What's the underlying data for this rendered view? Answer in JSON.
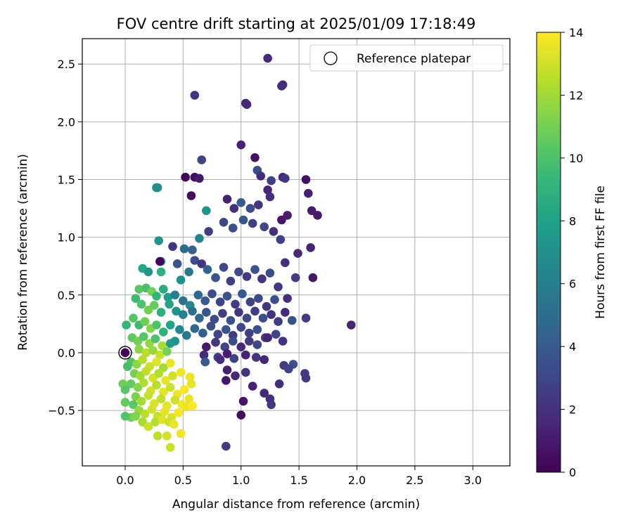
{
  "chart_data": {
    "type": "scatter",
    "title": "FOV centre drift starting at 2025/01/09 17:18:49",
    "xlabel": "Angular distance from reference (arcmin)",
    "ylabel": "Rotation from reference (arcmin)",
    "xlim": [
      -0.37,
      3.32
    ],
    "ylim": [
      -0.98,
      2.72
    ],
    "xticks": [
      "0.0",
      "0.5",
      "1.0",
      "1.5",
      "2.0",
      "2.5",
      "3.0"
    ],
    "xtick_values": [
      0,
      0.5,
      1,
      1.5,
      2,
      2.5,
      3
    ],
    "yticks": [
      "−0.5",
      "0.0",
      "0.5",
      "1.0",
      "1.5",
      "2.0",
      "2.5"
    ],
    "ytick_values": [
      -0.5,
      0,
      0.5,
      1,
      1.5,
      2,
      2.5
    ],
    "grid": true,
    "legend": {
      "position": "top-right",
      "entries": [
        {
          "label": "Reference platepar",
          "marker": "open-circle",
          "color": "#000000"
        }
      ]
    },
    "reference_point": {
      "x": 0.0,
      "y": 0.0
    },
    "colorbar": {
      "label": "Hours from first FF file",
      "range": [
        0,
        14
      ],
      "ticks": [
        "0",
        "2",
        "4",
        "6",
        "8",
        "10",
        "12",
        "14"
      ],
      "tick_values": [
        0,
        2,
        4,
        6,
        8,
        10,
        12,
        14
      ],
      "colormap": "viridis",
      "colors": [
        "#440154",
        "#482878",
        "#3e4989",
        "#31688e",
        "#26828e",
        "#1f9e89",
        "#35b779",
        "#6ece58",
        "#b5de2b",
        "#fde725"
      ]
    },
    "points": [
      [
        1.23,
        2.55,
        1.5
      ],
      [
        0.6,
        2.23,
        2.1
      ],
      [
        1.36,
        2.32,
        1.6
      ],
      [
        1.35,
        2.31,
        1.8
      ],
      [
        1.04,
        2.16,
        1.2
      ],
      [
        1.05,
        2.15,
        1.7
      ],
      [
        1.0,
        1.8,
        1.3
      ],
      [
        1.12,
        1.69,
        0.6
      ],
      [
        1.14,
        1.58,
        3.3
      ],
      [
        0.66,
        1.67,
        2.9
      ],
      [
        0.52,
        1.52,
        0.2
      ],
      [
        0.6,
        1.52,
        0.5
      ],
      [
        0.64,
        1.51,
        1.0
      ],
      [
        1.36,
        1.52,
        1.4
      ],
      [
        1.56,
        1.5,
        0.6
      ],
      [
        1.17,
        1.53,
        1.8
      ],
      [
        1.26,
        1.49,
        2.6
      ],
      [
        1.23,
        1.41,
        1.5
      ],
      [
        1.58,
        1.38,
        1.3
      ],
      [
        0.57,
        1.36,
        0.4
      ],
      [
        0.27,
        1.43,
        6.7
      ],
      [
        0.28,
        1.43,
        6.9
      ],
      [
        1.61,
        1.23,
        1.2
      ],
      [
        1.66,
        1.19,
        1.0
      ],
      [
        1.0,
        1.3,
        4.0
      ],
      [
        0.7,
        1.23,
        7.2
      ],
      [
        1.35,
        1.15,
        0.8
      ],
      [
        0.88,
        1.33,
        1.3
      ],
      [
        0.94,
        1.25,
        2.0
      ],
      [
        1.08,
        1.25,
        3.2
      ],
      [
        1.15,
        1.28,
        2.3
      ],
      [
        0.29,
        0.97,
        7.1
      ],
      [
        0.41,
        0.92,
        2.1
      ],
      [
        0.51,
        0.9,
        4.9
      ],
      [
        0.58,
        0.89,
        4.4
      ],
      [
        0.64,
        0.99,
        6.4
      ],
      [
        0.72,
        1.05,
        2.5
      ],
      [
        0.85,
        1.13,
        3.0
      ],
      [
        0.93,
        1.08,
        3.4
      ],
      [
        1.02,
        1.15,
        3.8
      ],
      [
        1.1,
        1.12,
        2.7
      ],
      [
        1.2,
        1.09,
        3.1
      ],
      [
        1.28,
        1.05,
        1.9
      ],
      [
        1.34,
        0.98,
        2.8
      ],
      [
        1.49,
        0.86,
        1.6
      ],
      [
        1.6,
        0.91,
        1.4
      ],
      [
        0.31,
        0.79,
        8.5
      ],
      [
        0.15,
        0.73,
        8.2
      ],
      [
        0.2,
        0.7,
        7.4
      ],
      [
        0.31,
        0.7,
        8.9
      ],
      [
        0.3,
        0.79,
        0.3
      ],
      [
        0.45,
        0.77,
        3.6
      ],
      [
        0.48,
        0.63,
        7.0
      ],
      [
        0.55,
        0.7,
        5.6
      ],
      [
        0.6,
        0.8,
        3.4
      ],
      [
        0.66,
        0.77,
        2.2
      ],
      [
        0.71,
        0.72,
        4.4
      ],
      [
        0.78,
        0.65,
        3.7
      ],
      [
        0.85,
        0.74,
        3.0
      ],
      [
        0.91,
        0.62,
        2.6
      ],
      [
        0.98,
        0.7,
        3.3
      ],
      [
        1.05,
        0.66,
        2.4
      ],
      [
        1.12,
        0.72,
        3.5
      ],
      [
        1.18,
        0.64,
        2.1
      ],
      [
        1.25,
        0.69,
        3.2
      ],
      [
        1.32,
        0.57,
        2.3
      ],
      [
        1.38,
        0.78,
        1.8
      ],
      [
        1.47,
        0.65,
        2.6
      ],
      [
        1.62,
        0.65,
        0.9
      ],
      [
        0.12,
        0.55,
        10.4
      ],
      [
        0.18,
        0.56,
        9.9
      ],
      [
        0.23,
        0.53,
        11.0
      ],
      [
        0.27,
        0.49,
        9.2
      ],
      [
        0.33,
        0.55,
        8.7
      ],
      [
        0.37,
        0.48,
        7.6
      ],
      [
        0.43,
        0.5,
        6.0
      ],
      [
        0.5,
        0.45,
        5.3
      ],
      [
        0.56,
        0.41,
        6.5
      ],
      [
        0.63,
        0.5,
        4.6
      ],
      [
        0.69,
        0.45,
        4.0
      ],
      [
        0.75,
        0.51,
        3.3
      ],
      [
        0.82,
        0.44,
        2.9
      ],
      [
        0.88,
        0.49,
        3.7
      ],
      [
        0.95,
        0.42,
        2.5
      ],
      [
        1.01,
        0.51,
        3.9
      ],
      [
        1.08,
        0.44,
        2.8
      ],
      [
        1.15,
        0.47,
        3.1
      ],
      [
        1.22,
        0.4,
        2.2
      ],
      [
        1.29,
        0.46,
        3.4
      ],
      [
        1.4,
        0.47,
        1.9
      ],
      [
        0.09,
        0.47,
        9.5
      ],
      [
        0.14,
        0.42,
        10.0
      ],
      [
        0.2,
        0.37,
        11.0
      ],
      [
        0.25,
        0.41,
        10.6
      ],
      [
        0.31,
        0.35,
        8.8
      ],
      [
        0.38,
        0.42,
        8.1
      ],
      [
        0.44,
        0.36,
        7.2
      ],
      [
        0.5,
        0.33,
        6.3
      ],
      [
        0.58,
        0.36,
        5.0
      ],
      [
        0.64,
        0.3,
        4.6
      ],
      [
        0.7,
        0.35,
        3.7
      ],
      [
        0.77,
        0.29,
        3.2
      ],
      [
        0.84,
        0.34,
        2.7
      ],
      [
        0.91,
        0.28,
        3.5
      ],
      [
        0.98,
        0.35,
        2.3
      ],
      [
        1.05,
        0.3,
        3.0
      ],
      [
        1.12,
        0.36,
        2.6
      ],
      [
        1.19,
        0.3,
        3.3
      ],
      [
        1.26,
        0.33,
        2.0
      ],
      [
        1.32,
        0.27,
        2.5
      ],
      [
        1.38,
        0.35,
        1.7
      ],
      [
        1.44,
        0.28,
        3.5
      ],
      [
        1.56,
        0.3,
        2.4
      ],
      [
        1.95,
        0.24,
        1.4
      ],
      [
        0.07,
        0.3,
        10.2
      ],
      [
        0.12,
        0.24,
        9.6
      ],
      [
        0.17,
        0.27,
        10.9
      ],
      [
        0.22,
        0.21,
        11.4
      ],
      [
        0.27,
        0.24,
        10.0
      ],
      [
        0.33,
        0.18,
        8.9
      ],
      [
        0.39,
        0.24,
        8.0
      ],
      [
        0.47,
        0.2,
        6.4
      ],
      [
        0.53,
        0.15,
        5.5
      ],
      [
        0.6,
        0.21,
        4.8
      ],
      [
        0.67,
        0.17,
        4.2
      ],
      [
        0.74,
        0.23,
        3.3
      ],
      [
        0.8,
        0.16,
        2.9
      ],
      [
        0.87,
        0.2,
        3.7
      ],
      [
        0.93,
        0.15,
        2.4
      ],
      [
        1.0,
        0.22,
        3.1
      ],
      [
        1.07,
        0.17,
        2.7
      ],
      [
        1.14,
        0.2,
        3.4
      ],
      [
        1.21,
        0.13,
        2.2
      ],
      [
        1.3,
        0.16,
        3.0
      ],
      [
        0.06,
        0.13,
        10.5
      ],
      [
        0.11,
        0.1,
        11.0
      ],
      [
        0.16,
        0.14,
        10.3
      ],
      [
        0.21,
        0.08,
        11.7
      ],
      [
        0.26,
        0.12,
        10.0
      ],
      [
        0.32,
        0.06,
        12.2
      ],
      [
        0.39,
        0.08,
        7.6
      ],
      [
        0.7,
        0.05,
        1.0
      ],
      [
        0.78,
        0.09,
        2.2
      ],
      [
        0.86,
        0.05,
        2.9
      ],
      [
        0.93,
        0.1,
        3.4
      ],
      [
        1.0,
        0.05,
        1.6
      ],
      [
        1.07,
        0.1,
        2.4
      ],
      [
        1.14,
        0.07,
        3.0
      ],
      [
        1.23,
        0.13,
        1.4
      ],
      [
        1.36,
        0.1,
        2.0
      ],
      [
        0.12,
        0.03,
        11.5
      ],
      [
        0.18,
        0.0,
        12.5
      ],
      [
        0.24,
        0.02,
        11.8
      ],
      [
        0.3,
        -0.02,
        12.8
      ],
      [
        0.36,
        0.01,
        11.0
      ],
      [
        0.68,
        -0.02,
        1.6
      ],
      [
        0.8,
        -0.04,
        2.5
      ],
      [
        0.88,
        -0.01,
        1.2
      ],
      [
        0.94,
        -0.05,
        2.8
      ],
      [
        1.04,
        -0.02,
        1.4
      ],
      [
        1.13,
        -0.04,
        2.3
      ],
      [
        0.05,
        -0.08,
        10.1
      ],
      [
        0.1,
        -0.1,
        11.6
      ],
      [
        0.15,
        -0.06,
        12.4
      ],
      [
        0.21,
        -0.12,
        12.9
      ],
      [
        0.27,
        -0.08,
        13.3
      ],
      [
        0.33,
        -0.13,
        12.1
      ],
      [
        0.39,
        -0.09,
        13.6
      ],
      [
        0.69,
        -0.08,
        3.9
      ],
      [
        0.82,
        -0.06,
        1.8
      ],
      [
        1.2,
        -0.06,
        1.5
      ],
      [
        1.37,
        -0.11,
        2.5
      ],
      [
        1.45,
        -0.1,
        3.5
      ],
      [
        0.08,
        -0.18,
        11.1
      ],
      [
        0.13,
        -0.2,
        12.0
      ],
      [
        0.18,
        -0.16,
        12.7
      ],
      [
        0.24,
        -0.22,
        13.1
      ],
      [
        0.29,
        -0.18,
        12.4
      ],
      [
        0.35,
        -0.24,
        13.5
      ],
      [
        0.41,
        -0.2,
        13.0
      ],
      [
        0.48,
        -0.17,
        13.8
      ],
      [
        0.56,
        -0.21,
        13.6
      ],
      [
        0.88,
        -0.15,
        1.2
      ],
      [
        0.95,
        -0.2,
        1.6
      ],
      [
        1.04,
        -0.17,
        2.0
      ],
      [
        1.41,
        -0.14,
        2.8
      ],
      [
        1.55,
        -0.18,
        2.3
      ],
      [
        0.05,
        -0.27,
        10.6
      ],
      [
        0.11,
        -0.3,
        11.4
      ],
      [
        0.16,
        -0.26,
        12.3
      ],
      [
        0.22,
        -0.33,
        13.0
      ],
      [
        0.27,
        -0.28,
        12.6
      ],
      [
        0.33,
        -0.34,
        13.4
      ],
      [
        0.39,
        -0.3,
        12.9
      ],
      [
        0.45,
        -0.36,
        13.7
      ],
      [
        0.51,
        -0.32,
        13.9
      ],
      [
        0.57,
        -0.27,
        13.5
      ],
      [
        0.87,
        -0.24,
        0.9
      ],
      [
        1.1,
        -0.29,
        1.3
      ],
      [
        1.33,
        -0.27,
        1.8
      ],
      [
        1.56,
        -0.22,
        2.2
      ],
      [
        0.09,
        -0.38,
        11.2
      ],
      [
        0.14,
        -0.42,
        12.1
      ],
      [
        0.2,
        -0.37,
        12.8
      ],
      [
        0.25,
        -0.44,
        13.2
      ],
      [
        0.31,
        -0.4,
        12.7
      ],
      [
        0.36,
        -0.46,
        13.4
      ],
      [
        0.43,
        -0.41,
        13.0
      ],
      [
        0.49,
        -0.45,
        13.8
      ],
      [
        0.55,
        -0.4,
        13.6
      ],
      [
        1.2,
        -0.35,
        1.5
      ],
      [
        1.25,
        -0.4,
        1.9
      ],
      [
        1.26,
        -0.45,
        2.3
      ],
      [
        1.02,
        -0.42,
        0.8
      ],
      [
        0.07,
        -0.45,
        10.4
      ],
      [
        0.12,
        -0.5,
        11.8
      ],
      [
        0.17,
        -0.53,
        12.5
      ],
      [
        0.23,
        -0.49,
        13.1
      ],
      [
        0.28,
        -0.55,
        12.8
      ],
      [
        0.34,
        -0.51,
        13.5
      ],
      [
        0.4,
        -0.56,
        13.2
      ],
      [
        0.46,
        -0.52,
        13.9
      ],
      [
        0.53,
        -0.47,
        13.7
      ],
      [
        0.58,
        -0.46,
        14.0
      ],
      [
        0.05,
        -0.56,
        10.8
      ],
      [
        0.09,
        -0.55,
        11.3
      ],
      [
        0.15,
        -0.6,
        12.2
      ],
      [
        0.2,
        -0.64,
        12.9
      ],
      [
        0.26,
        -0.6,
        12.4
      ],
      [
        0.32,
        -0.58,
        13.3
      ],
      [
        0.38,
        -0.6,
        13.0
      ],
      [
        0.42,
        -0.62,
        13.6
      ],
      [
        1.0,
        -0.54,
        0.4
      ],
      [
        0.28,
        -0.72,
        12.6
      ],
      [
        0.36,
        -0.72,
        13.1
      ],
      [
        0.48,
        -0.7,
        13.8
      ],
      [
        0.39,
        -0.82,
        12.9
      ],
      [
        0.87,
        -0.81,
        2.5
      ],
      [
        -0.02,
        -0.27,
        10.9
      ],
      [
        0.0,
        -0.32,
        10.3
      ],
      [
        0.02,
        -0.12,
        9.8
      ],
      [
        0.0,
        -0.43,
        10.6
      ],
      [
        0.0,
        -0.55,
        10.1
      ],
      [
        0.01,
        0.24,
        9.3
      ],
      [
        0.43,
        0.1,
        7.3
      ],
      [
        1.25,
        1.35,
        2.0
      ],
      [
        1.38,
        1.51,
        2.3
      ],
      [
        1.4,
        1.19,
        1.1
      ]
    ]
  }
}
